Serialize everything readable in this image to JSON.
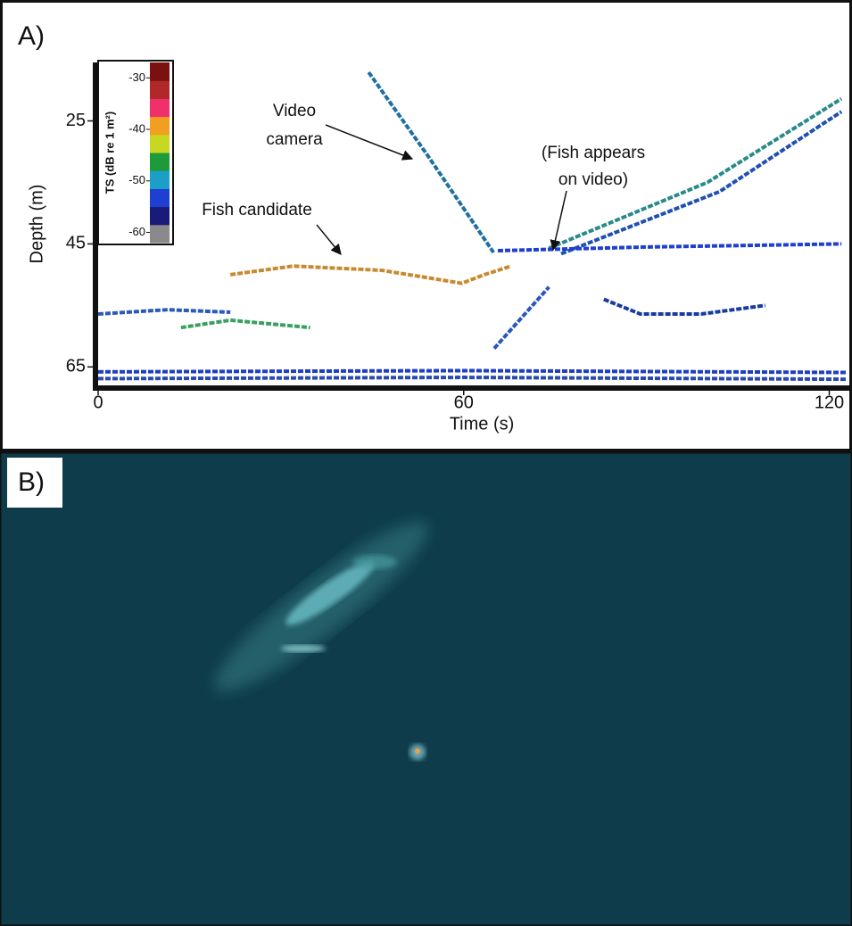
{
  "panel_a": {
    "label": "A)"
  },
  "panel_b": {
    "label": "B)"
  },
  "chart_data": {
    "type": "echogram",
    "xlabel": "Time (s)",
    "ylabel": "Depth (m)",
    "xlim": [
      0,
      123
    ],
    "ylim": [
      15.5,
      68
    ],
    "y_inverted": true,
    "xticks": [
      0,
      60,
      120
    ],
    "yticks": [
      25,
      45,
      65
    ],
    "colorbar": {
      "label": "TS (dB re 1 m²)",
      "clim": [
        -62,
        -27
      ],
      "ticks": [
        -30,
        -40,
        -50,
        -60
      ],
      "colors": [
        "#8a8a8a",
        "#1a1a7a",
        "#1f3fd0",
        "#1aa0c8",
        "#1f9a3a",
        "#c8d820",
        "#f0a020",
        "#f0306a",
        "#b02828",
        "#7a1010"
      ]
    },
    "annotations": [
      {
        "lines": [
          "Video",
          "camera"
        ]
      },
      {
        "lines": [
          "Fish candidate"
        ]
      },
      {
        "lines": [
          "(Fish appears",
          "on video)"
        ]
      }
    ],
    "tracks": [
      {
        "color": "#1f6fa0",
        "x": [
          44.4,
          54,
          64.9
        ],
        "values": [
          17.1,
          30.5,
          46.4
        ]
      },
      {
        "color": "#2a56c0",
        "x": [
          65,
          74
        ],
        "values": [
          62,
          52
        ]
      },
      {
        "color": "#2a8a8a",
        "x": [
          74,
          100,
          122
        ],
        "values": [
          45.7,
          35,
          21.4
        ]
      },
      {
        "color": "#2050b0",
        "x": [
          76,
          102,
          122
        ],
        "values": [
          46.6,
          36.5,
          23.5
        ]
      },
      {
        "color": "#c88a30",
        "x": [
          21.7,
          32,
          46.6,
          59.7,
          63.4,
          67.8
        ],
        "values": [
          50,
          48.6,
          49.3,
          51.4,
          50,
          48.6
        ]
      },
      {
        "color": "#2a5ab8",
        "x": [
          0,
          11.4,
          21.7
        ],
        "values": [
          56.4,
          55.7,
          56.1
        ]
      },
      {
        "color": "#3aa060",
        "x": [
          13.6,
          21.7,
          34.8
        ],
        "values": [
          58.6,
          57.4,
          58.6
        ]
      },
      {
        "color": "#1f3fd0",
        "x": [
          65.6,
          90,
          122
        ],
        "values": [
          46.1,
          45.5,
          45
        ]
      },
      {
        "color": "#1a3aa0",
        "x": [
          83,
          89,
          99,
          109.5
        ],
        "values": [
          54,
          56.4,
          56.4,
          55
        ]
      },
      {
        "color": "#1f3fc0",
        "x": [
          0,
          60,
          123
        ],
        "values": [
          65.8,
          65.6,
          65.9
        ]
      },
      {
        "color": "#2a4ab0",
        "x": [
          0,
          60,
          123
        ],
        "values": [
          66.9,
          66.7,
          67
        ]
      }
    ]
  }
}
